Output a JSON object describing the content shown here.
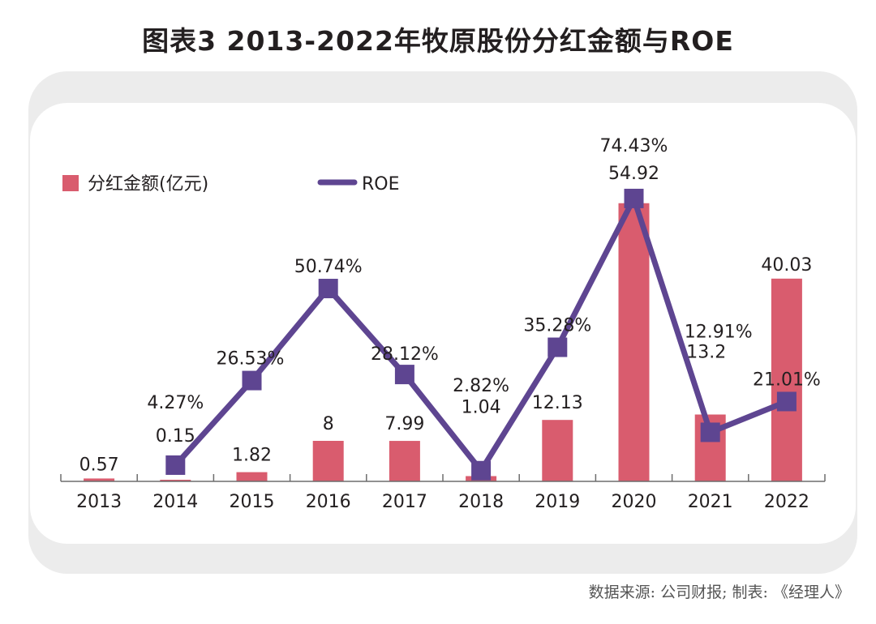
{
  "title": "图表3   2013-2022年牧原股份分红金额与ROE",
  "source": "数据来源: 公司财报; 制表: 《经理人》",
  "colors": {
    "bar": "#d95c6e",
    "line": "#5e4591",
    "axis": "#6d6d6d",
    "panel_outer": "#ececec",
    "panel_inner": "#ffffff"
  },
  "chart_data": {
    "type": "bar",
    "title": "图表3 2013-2022年牧原股份分红金额与ROE",
    "xlabel": "",
    "ylabel": "",
    "categories": [
      "2013",
      "2014",
      "2015",
      "2016",
      "2017",
      "2018",
      "2019",
      "2020",
      "2021",
      "2022"
    ],
    "legend_position": "top-left",
    "grid": false,
    "series": [
      {
        "name": "分红金额(亿元)",
        "type": "bar",
        "values": [
          0.57,
          0.15,
          1.82,
          8,
          7.99,
          1.04,
          12.13,
          54.92,
          13.2,
          40.03
        ],
        "labels": [
          "0.57",
          "0.15",
          "1.82",
          "8",
          "7.99",
          "1.04",
          "12.13",
          "54.92",
          "13.2",
          "40.03"
        ],
        "ylim": [
          0,
          55
        ]
      },
      {
        "name": "ROE",
        "type": "line",
        "unit": "%",
        "values": [
          null,
          4.27,
          26.53,
          50.74,
          28.12,
          2.82,
          35.28,
          74.43,
          12.91,
          21.01
        ],
        "labels": [
          "",
          "4.27%",
          "26.53%",
          "50.74%",
          "28.12%",
          "2.82%",
          "35.28%",
          "74.43%",
          "12.91%",
          "21.01%"
        ],
        "ylim": [
          0,
          75
        ]
      }
    ]
  }
}
